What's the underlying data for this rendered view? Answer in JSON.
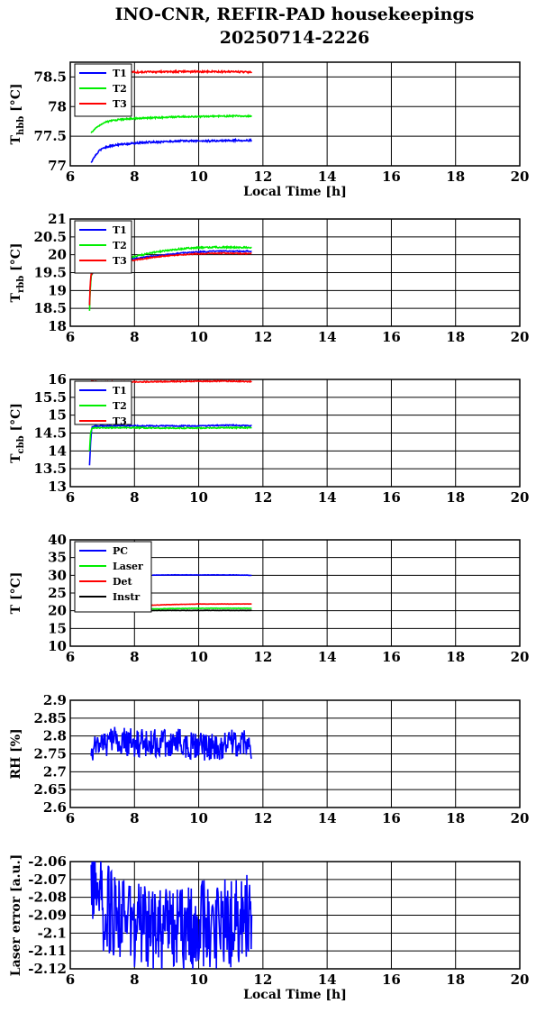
{
  "figure": {
    "title_line1": "INO-CNR, REFIR-PAD housekeepings",
    "title_line2": "20250714-2226"
  },
  "colors": {
    "blue": "#0000ff",
    "green": "#00ee00",
    "red": "#ff0000",
    "black": "#000000"
  },
  "chart_data": [
    {
      "type": "line",
      "ylabel": "T_hbb [°C]",
      "xlabel": "Local Time [h]",
      "xlim": [
        6,
        20
      ],
      "ylim": [
        77,
        78.75
      ],
      "xticks": [
        "6",
        "8",
        "10",
        "12",
        "14",
        "16",
        "18",
        "20"
      ],
      "yticks": [
        "77",
        "77.5",
        "78",
        "78.5"
      ],
      "grid": true,
      "legend": "top-left",
      "series": [
        {
          "name": "T1",
          "color": "blue",
          "x": [
            6.65,
            6.75,
            6.9,
            7.0,
            7.2,
            7.5,
            8.0,
            8.5,
            9.0,
            9.5,
            10.0,
            10.5,
            11.0,
            11.5,
            11.65
          ],
          "y": [
            77.05,
            77.15,
            77.25,
            77.3,
            77.33,
            77.36,
            77.38,
            77.4,
            77.41,
            77.42,
            77.42,
            77.42,
            77.43,
            77.43,
            77.43
          ],
          "noise": 0.015
        },
        {
          "name": "T2",
          "color": "green",
          "x": [
            6.65,
            6.75,
            6.9,
            7.0,
            7.2,
            7.5,
            8.0,
            8.5,
            9.0,
            9.5,
            10.0,
            10.5,
            11.0,
            11.5,
            11.65
          ],
          "y": [
            77.55,
            77.62,
            77.68,
            77.72,
            77.75,
            77.78,
            77.8,
            77.81,
            77.82,
            77.83,
            77.83,
            77.84,
            77.84,
            77.84,
            77.84
          ],
          "noise": 0.012
        },
        {
          "name": "T3",
          "color": "red",
          "x": [
            6.65,
            7.0,
            8.0,
            9.0,
            10.0,
            11.0,
            11.65
          ],
          "y": [
            78.58,
            78.58,
            78.58,
            78.59,
            78.59,
            78.59,
            78.58
          ],
          "noise": 0.014
        }
      ]
    },
    {
      "type": "line",
      "ylabel": "T_rbb [°C]",
      "xlabel": "",
      "xlim": [
        6,
        20
      ],
      "ylim": [
        18,
        21
      ],
      "xticks": [
        "6",
        "8",
        "10",
        "12",
        "14",
        "16",
        "18",
        "20"
      ],
      "yticks": [
        "18",
        "18.5",
        "19",
        "19.5",
        "20",
        "20.5",
        "21"
      ],
      "grid": true,
      "legend": "top-left",
      "series": [
        {
          "name": "T1",
          "color": "blue",
          "x": [
            6.6,
            6.62,
            6.65,
            6.7,
            6.8,
            7.0,
            7.5,
            8.0,
            8.5,
            9.0,
            9.5,
            10.0,
            10.5,
            11.0,
            11.5,
            11.65
          ],
          "y": [
            18.6,
            19.1,
            19.4,
            19.5,
            19.55,
            19.6,
            19.8,
            19.9,
            19.95,
            20.0,
            20.05,
            20.08,
            20.1,
            20.1,
            20.1,
            20.1
          ],
          "noise": 0.015
        },
        {
          "name": "T2",
          "color": "green",
          "x": [
            6.6,
            6.62,
            6.65,
            6.7,
            6.8,
            7.0,
            7.5,
            8.0,
            8.5,
            9.0,
            9.5,
            10.0,
            10.5,
            11.0,
            11.5,
            11.65
          ],
          "y": [
            18.45,
            19.0,
            19.4,
            19.5,
            19.55,
            19.6,
            19.8,
            19.95,
            20.05,
            20.12,
            20.17,
            20.2,
            20.21,
            20.21,
            20.2,
            20.2
          ],
          "noise": 0.02
        },
        {
          "name": "T3",
          "color": "red",
          "x": [
            6.6,
            6.62,
            6.65,
            6.7,
            6.8,
            7.0,
            7.5,
            8.0,
            8.5,
            9.0,
            9.5,
            10.0,
            10.5,
            11.0,
            11.5,
            11.65
          ],
          "y": [
            18.6,
            19.2,
            19.45,
            19.5,
            19.55,
            19.6,
            19.75,
            19.85,
            19.92,
            19.97,
            20.0,
            20.03,
            20.04,
            20.04,
            20.03,
            20.03
          ],
          "noise": 0.015
        }
      ]
    },
    {
      "type": "line",
      "ylabel": "T_cbb [°C]",
      "xlabel": "",
      "xlim": [
        6,
        20
      ],
      "ylim": [
        13,
        16
      ],
      "xticks": [
        "6",
        "8",
        "10",
        "12",
        "14",
        "16",
        "18",
        "20"
      ],
      "yticks": [
        "13",
        "13.5",
        "14",
        "14.5",
        "15",
        "15.5",
        "16"
      ],
      "grid": true,
      "legend": "top-left",
      "series": [
        {
          "name": "T1",
          "color": "blue",
          "x": [
            6.6,
            6.63,
            6.67,
            6.75,
            7.0,
            8.0,
            9.0,
            10.0,
            11.0,
            11.65
          ],
          "y": [
            13.6,
            14.2,
            14.65,
            14.7,
            14.7,
            14.7,
            14.7,
            14.7,
            14.72,
            14.7
          ],
          "noise": 0.015
        },
        {
          "name": "T2",
          "color": "green",
          "x": [
            6.6,
            6.63,
            6.67,
            6.75,
            7.0,
            8.0,
            9.0,
            10.0,
            11.0,
            11.65
          ],
          "y": [
            14.0,
            14.5,
            14.63,
            14.65,
            14.65,
            14.65,
            14.64,
            14.64,
            14.65,
            14.65
          ],
          "noise": 0.015
        },
        {
          "name": "T3",
          "color": "red",
          "x": [
            6.65,
            7.0,
            8.0,
            9.0,
            10.0,
            11.0,
            11.65
          ],
          "y": [
            15.95,
            15.93,
            15.93,
            15.94,
            15.95,
            15.95,
            15.94
          ],
          "noise": 0.015
        }
      ]
    },
    {
      "type": "line",
      "ylabel": "T [°C]",
      "xlabel": "",
      "xlim": [
        6,
        20
      ],
      "ylim": [
        10,
        40
      ],
      "xticks": [
        "6",
        "8",
        "10",
        "12",
        "14",
        "16",
        "18",
        "20"
      ],
      "yticks": [
        "10",
        "15",
        "20",
        "25",
        "30",
        "35",
        "40"
      ],
      "grid": true,
      "legend": "top-left",
      "series": [
        {
          "name": "PC",
          "color": "blue",
          "x": [
            8.55,
            9.0,
            10.0,
            11.0,
            11.65
          ],
          "y": [
            30.0,
            30.1,
            30.1,
            30.1,
            30.0
          ],
          "noise": 0.05
        },
        {
          "name": "Laser",
          "color": "green",
          "x": [
            6.65,
            7.0,
            8.0,
            9.0,
            10.0,
            11.0,
            11.65
          ],
          "y": [
            20.0,
            20.2,
            20.4,
            20.6,
            20.7,
            20.7,
            20.7
          ],
          "noise": 0.05
        },
        {
          "name": "Det",
          "color": "red",
          "x": [
            6.65,
            7.0,
            8.0,
            9.0,
            10.0,
            11.0,
            11.65
          ],
          "y": [
            20.7,
            21.0,
            21.4,
            21.7,
            21.9,
            21.9,
            21.9
          ],
          "noise": 0.04
        },
        {
          "name": "Instr",
          "color": "black",
          "x": [
            6.65,
            7.0,
            8.0,
            9.0,
            10.0,
            11.0,
            11.65
          ],
          "y": [
            19.8,
            19.9,
            20.0,
            20.1,
            20.1,
            20.1,
            20.1
          ],
          "noise": 0.04
        }
      ]
    },
    {
      "type": "line",
      "ylabel": "RH [%]",
      "xlabel": "",
      "xlim": [
        6,
        20
      ],
      "ylim": [
        2.6,
        2.9
      ],
      "xticks": [
        "6",
        "8",
        "10",
        "12",
        "14",
        "16",
        "18",
        "20"
      ],
      "yticks": [
        "2.6",
        "2.65",
        "2.7",
        "2.75",
        "2.8",
        "2.85",
        "2.9"
      ],
      "grid": true,
      "legend": "none",
      "series": [
        {
          "color": "blue",
          "x": [
            6.65,
            7.0,
            7.5,
            8.0,
            8.5,
            9.0,
            9.5,
            10.0,
            10.5,
            11.0,
            11.5,
            11.65
          ],
          "y": [
            2.77,
            2.78,
            2.79,
            2.78,
            2.78,
            2.78,
            2.78,
            2.77,
            2.77,
            2.78,
            2.78,
            2.76
          ],
          "noise": 0.04
        }
      ]
    },
    {
      "type": "line",
      "ylabel": "Laser error [a.u.]",
      "xlabel": "Local Time [h]",
      "xlim": [
        6,
        20
      ],
      "ylim": [
        -2.12,
        -2.06
      ],
      "xticks": [
        "6",
        "8",
        "10",
        "12",
        "14",
        "16",
        "18",
        "20"
      ],
      "yticks": [
        "-2.06",
        "-2.07",
        "-2.08",
        "-2.09",
        "-2.1",
        "-2.11",
        "-2.12"
      ],
      "grid": true,
      "legend": "none",
      "series": [
        {
          "color": "blue",
          "x": [
            6.65,
            6.8,
            7.0,
            7.5,
            8.0,
            8.5,
            9.0,
            9.5,
            10.0,
            10.5,
            11.0,
            11.5,
            11.65
          ],
          "y": [
            -2.065,
            -2.075,
            -2.085,
            -2.09,
            -2.095,
            -2.1,
            -2.1,
            -2.1,
            -2.095,
            -2.095,
            -2.095,
            -2.09,
            -2.095
          ],
          "noise": 0.025
        }
      ]
    }
  ]
}
